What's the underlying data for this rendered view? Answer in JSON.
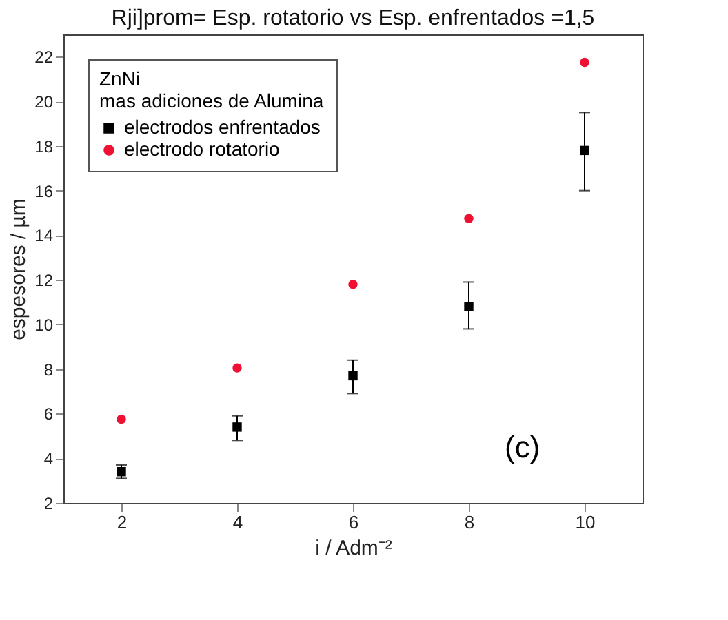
{
  "chart_data": {
    "type": "scatter",
    "title": "Rji]prom= Esp. rotatorio vs Esp. enfrentados =1,5",
    "xlabel": "i / Adm⁻²",
    "ylabel": "espesores / µm",
    "legend_title": "ZnNi\nmas adiciones de Alumina",
    "legend": "top left",
    "grid": false,
    "x": [
      2,
      4,
      6,
      8,
      10
    ],
    "xlim": [
      1,
      11
    ],
    "xticks": [
      2,
      4,
      6,
      8,
      10
    ],
    "ylim": [
      2,
      23
    ],
    "yticks": [
      2,
      4,
      6,
      8,
      10,
      12,
      14,
      16,
      18,
      20,
      22
    ],
    "series": [
      {
        "name": "electrodos enfrentados",
        "color": "#000000",
        "marker": "square",
        "values": [
          3.4,
          5.4,
          7.7,
          10.8,
          17.8
        ],
        "errors": [
          [
            3.1,
            3.7
          ],
          [
            4.8,
            5.9
          ],
          [
            6.9,
            8.4
          ],
          [
            9.8,
            11.9
          ],
          [
            16.0,
            19.5
          ]
        ]
      },
      {
        "name": "electrodo rotatorio",
        "color": "#ee1133",
        "marker": "circle",
        "values": [
          5.75,
          8.05,
          11.8,
          14.75,
          21.75
        ]
      }
    ],
    "annotations": [
      "(c)"
    ]
  }
}
